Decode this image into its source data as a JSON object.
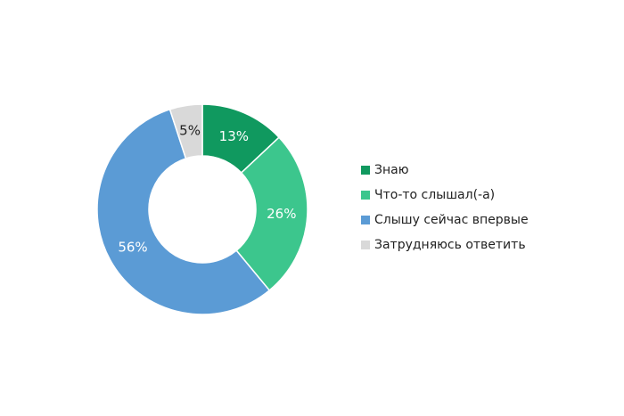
{
  "chart_data": {
    "type": "pie",
    "donut": true,
    "categories": [
      "Знаю",
      "Что-то слышал(-а)",
      "Слышу сейчас впервые",
      "Затрудняюсь ответить"
    ],
    "values": [
      13,
      26,
      56,
      5
    ],
    "value_labels": [
      "13%",
      "26%",
      "56%",
      "5%"
    ],
    "colors": [
      "#10995f",
      "#3cc68d",
      "#5b9bd5",
      "#d9d9d9"
    ],
    "legend": "right"
  }
}
